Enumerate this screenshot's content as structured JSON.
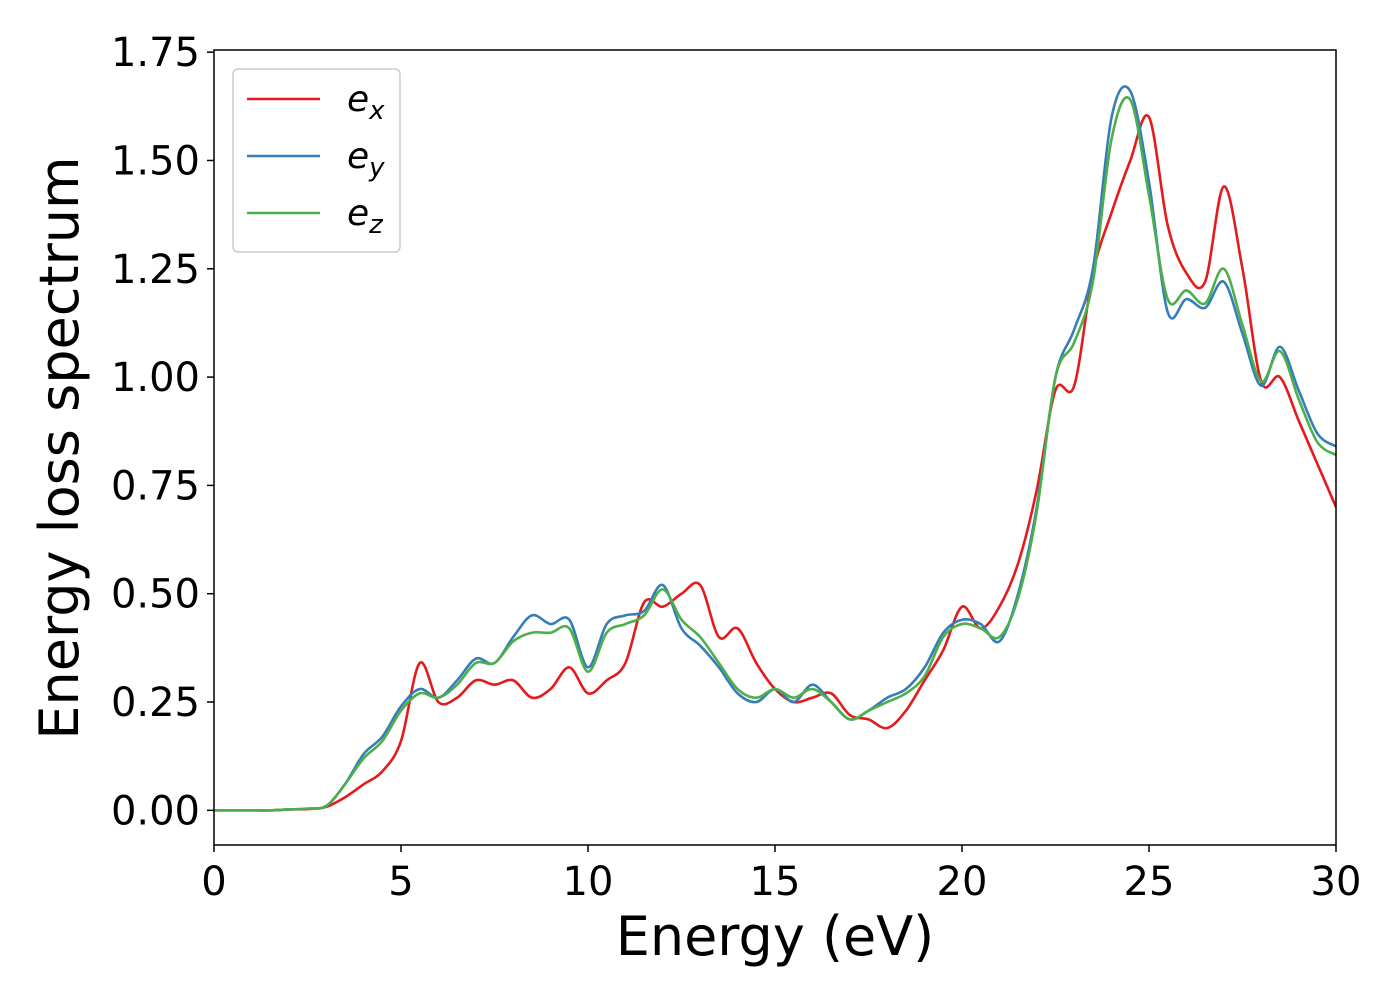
{
  "chart_data": {
    "type": "line",
    "xlabel": "Energy (eV)",
    "ylabel": "Energy loss spectrum",
    "x": [
      0,
      0.5,
      1,
      1.5,
      2,
      2.5,
      3,
      3.5,
      4,
      4.5,
      5,
      5.5,
      6,
      6.5,
      7,
      7.5,
      8,
      8.5,
      9,
      9.5,
      10,
      10.5,
      11,
      11.5,
      12,
      12.5,
      13,
      13.5,
      14,
      14.5,
      15,
      15.5,
      16,
      16.5,
      17,
      17.5,
      18,
      18.5,
      19,
      19.5,
      20,
      20.5,
      21,
      21.5,
      22,
      22.5,
      23,
      23.5,
      24,
      24.5,
      25,
      25.5,
      26,
      26.5,
      27,
      27.5,
      28,
      28.5,
      29,
      29.5,
      30
    ],
    "series": [
      {
        "name": "e",
        "name_subscript": "x",
        "color": "#e41a1c",
        "values": [
          0,
          0,
          0,
          0,
          0.002,
          0.003,
          0.008,
          0.03,
          0.06,
          0.09,
          0.16,
          0.34,
          0.25,
          0.26,
          0.3,
          0.29,
          0.3,
          0.26,
          0.28,
          0.33,
          0.27,
          0.3,
          0.34,
          0.48,
          0.47,
          0.5,
          0.52,
          0.4,
          0.42,
          0.34,
          0.28,
          0.25,
          0.26,
          0.27,
          0.22,
          0.21,
          0.19,
          0.23,
          0.3,
          0.37,
          0.47,
          0.42,
          0.47,
          0.57,
          0.74,
          0.97,
          0.98,
          1.24,
          1.38,
          1.5,
          1.6,
          1.35,
          1.24,
          1.22,
          1.44,
          1.25,
          0.99,
          1.0,
          0.9,
          0.8,
          0.7
        ]
      },
      {
        "name": "e",
        "name_subscript": "y",
        "color": "#377eb8",
        "values": [
          0,
          0,
          0,
          0,
          0.002,
          0.004,
          0.01,
          0.06,
          0.13,
          0.17,
          0.24,
          0.28,
          0.26,
          0.3,
          0.35,
          0.34,
          0.4,
          0.45,
          0.43,
          0.44,
          0.33,
          0.43,
          0.45,
          0.46,
          0.52,
          0.42,
          0.38,
          0.33,
          0.27,
          0.25,
          0.28,
          0.25,
          0.29,
          0.25,
          0.21,
          0.23,
          0.26,
          0.28,
          0.33,
          0.41,
          0.44,
          0.43,
          0.39,
          0.5,
          0.7,
          1.0,
          1.11,
          1.25,
          1.6,
          1.66,
          1.45,
          1.15,
          1.18,
          1.16,
          1.22,
          1.1,
          0.98,
          1.07,
          0.97,
          0.87,
          0.84
        ]
      },
      {
        "name": "e",
        "name_subscript": "z",
        "color": "#4daf4a",
        "values": [
          0,
          0,
          0,
          0,
          0.002,
          0.004,
          0.01,
          0.06,
          0.12,
          0.16,
          0.23,
          0.27,
          0.26,
          0.29,
          0.34,
          0.34,
          0.39,
          0.41,
          0.41,
          0.42,
          0.32,
          0.41,
          0.43,
          0.45,
          0.51,
          0.44,
          0.4,
          0.34,
          0.28,
          0.26,
          0.28,
          0.26,
          0.28,
          0.25,
          0.21,
          0.23,
          0.25,
          0.27,
          0.31,
          0.4,
          0.43,
          0.42,
          0.4,
          0.49,
          0.69,
          1.0,
          1.08,
          1.22,
          1.55,
          1.64,
          1.42,
          1.18,
          1.2,
          1.17,
          1.25,
          1.12,
          0.99,
          1.06,
          0.95,
          0.85,
          0.82
        ]
      }
    ],
    "xlim": [
      0,
      30
    ],
    "xticks": [
      0,
      5,
      10,
      15,
      20,
      25,
      30
    ],
    "ylim": [
      -0.08,
      1.755
    ],
    "yticks": [
      {
        "value": 0,
        "label": "0.00"
      },
      {
        "value": 0.25,
        "label": "0.25"
      },
      {
        "value": 0.5,
        "label": "0.50"
      },
      {
        "value": 0.75,
        "label": "0.75"
      },
      {
        "value": 1,
        "label": "1.00"
      },
      {
        "value": 1.25,
        "label": "1.25"
      },
      {
        "value": 1.5,
        "label": "1.50"
      },
      {
        "value": 1.75,
        "label": "1.75"
      }
    ],
    "grid": false,
    "legend": "upper left"
  }
}
